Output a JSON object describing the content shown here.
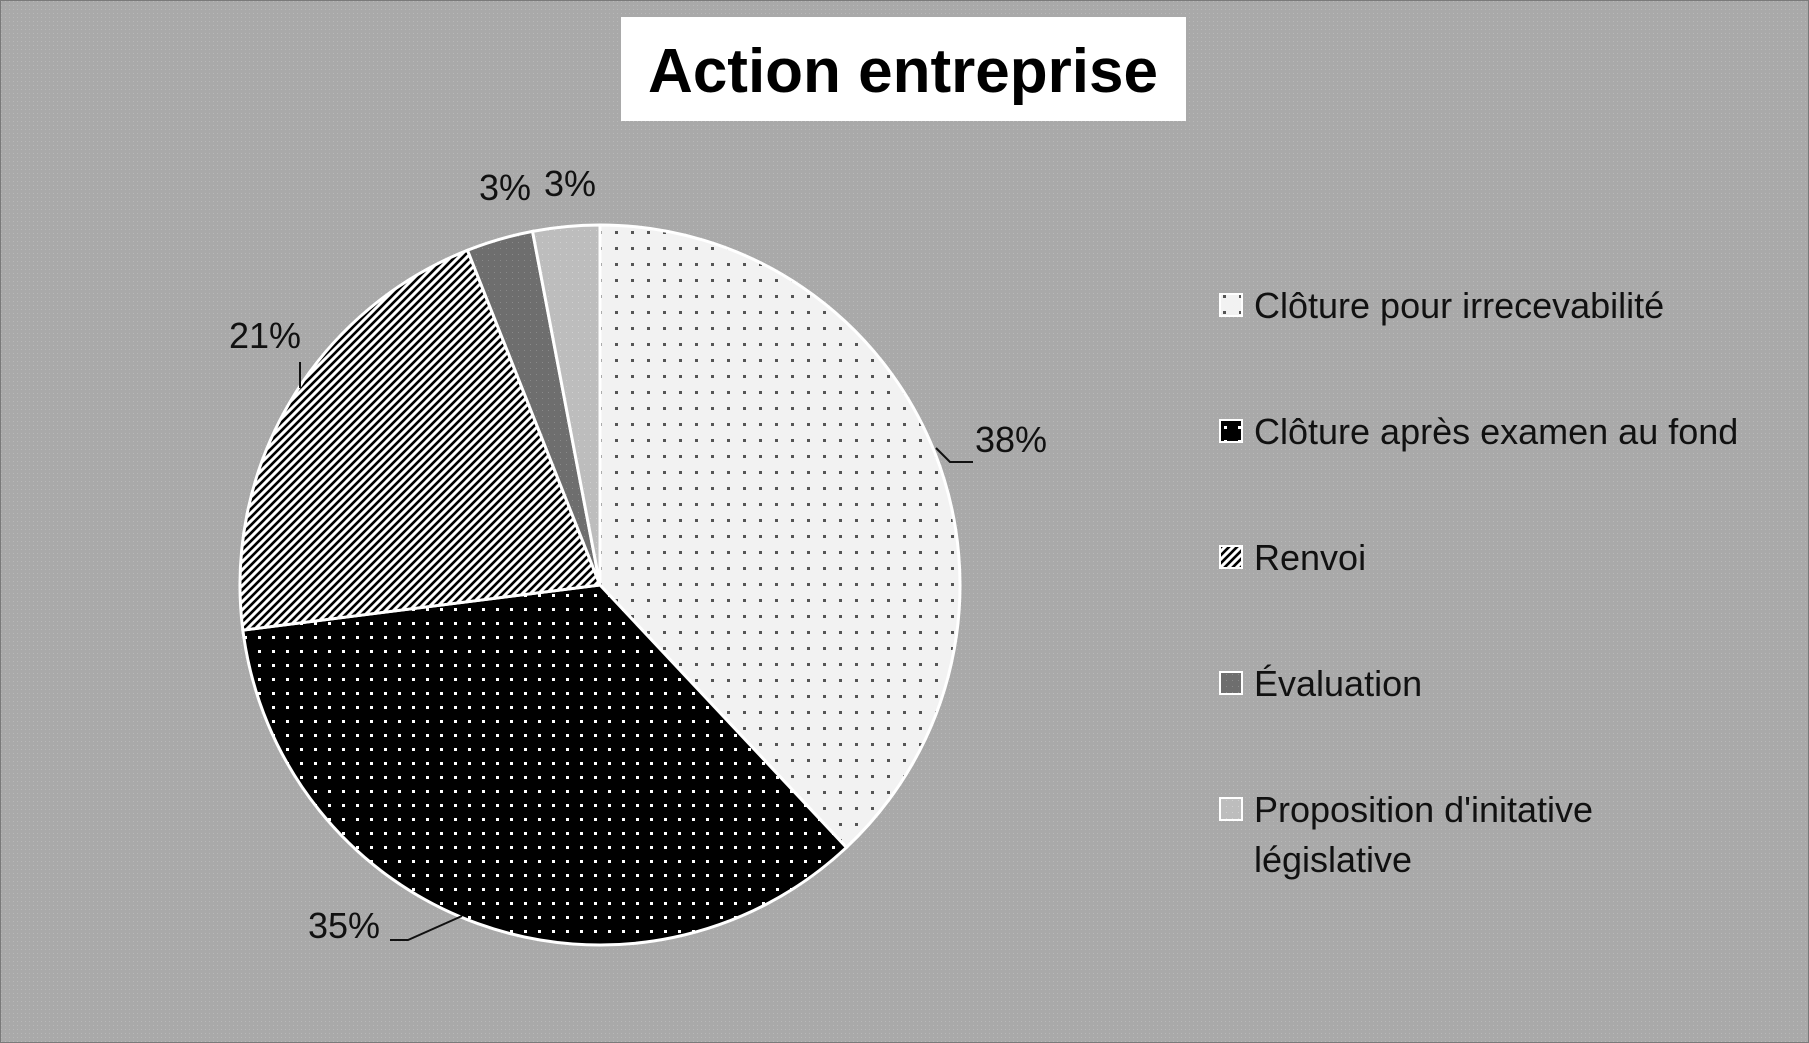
{
  "chart_data": {
    "type": "pie",
    "title": "Action entreprise",
    "categories": [
      "Clôture pour irrecevabilité",
      "Clôture après examen au fond",
      "Renvoi",
      "Évaluation",
      "Proposition d'initative législative"
    ],
    "values": [
      38,
      35,
      21,
      3,
      3
    ],
    "data_labels": [
      "38%",
      "35%",
      "21%",
      "3%",
      "3%"
    ],
    "legend": "right",
    "patterns": [
      "light-dots",
      "black-dots",
      "diagonal-stripes",
      "dark-gray",
      "light-gray"
    ],
    "colors": [
      "#f2f2f2",
      "#000000",
      "#ffffff",
      "#6e6e6e",
      "#bdbdbd"
    ]
  }
}
